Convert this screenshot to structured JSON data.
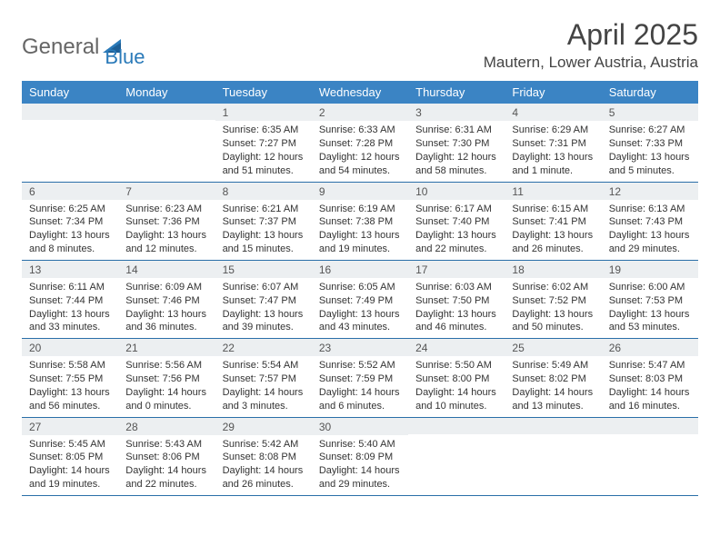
{
  "logo": {
    "word1": "General",
    "word2": "Blue"
  },
  "title": "April 2025",
  "location": "Mautern, Lower Austria, Austria",
  "daynames": [
    "Sunday",
    "Monday",
    "Tuesday",
    "Wednesday",
    "Thursday",
    "Friday",
    "Saturday"
  ],
  "colors": {
    "header_bg": "#3b84c4",
    "header_text": "#ffffff",
    "daynum_bg": "#eceff1",
    "rule": "#2a6fa8",
    "logo_gray": "#666666",
    "logo_blue": "#2a7ab9"
  },
  "weeks": [
    [
      {
        "n": "",
        "sr": "",
        "ss": "",
        "dl": ""
      },
      {
        "n": "",
        "sr": "",
        "ss": "",
        "dl": ""
      },
      {
        "n": "1",
        "sr": "Sunrise: 6:35 AM",
        "ss": "Sunset: 7:27 PM",
        "dl": "Daylight: 12 hours and 51 minutes."
      },
      {
        "n": "2",
        "sr": "Sunrise: 6:33 AM",
        "ss": "Sunset: 7:28 PM",
        "dl": "Daylight: 12 hours and 54 minutes."
      },
      {
        "n": "3",
        "sr": "Sunrise: 6:31 AM",
        "ss": "Sunset: 7:30 PM",
        "dl": "Daylight: 12 hours and 58 minutes."
      },
      {
        "n": "4",
        "sr": "Sunrise: 6:29 AM",
        "ss": "Sunset: 7:31 PM",
        "dl": "Daylight: 13 hours and 1 minute."
      },
      {
        "n": "5",
        "sr": "Sunrise: 6:27 AM",
        "ss": "Sunset: 7:33 PM",
        "dl": "Daylight: 13 hours and 5 minutes."
      }
    ],
    [
      {
        "n": "6",
        "sr": "Sunrise: 6:25 AM",
        "ss": "Sunset: 7:34 PM",
        "dl": "Daylight: 13 hours and 8 minutes."
      },
      {
        "n": "7",
        "sr": "Sunrise: 6:23 AM",
        "ss": "Sunset: 7:36 PM",
        "dl": "Daylight: 13 hours and 12 minutes."
      },
      {
        "n": "8",
        "sr": "Sunrise: 6:21 AM",
        "ss": "Sunset: 7:37 PM",
        "dl": "Daylight: 13 hours and 15 minutes."
      },
      {
        "n": "9",
        "sr": "Sunrise: 6:19 AM",
        "ss": "Sunset: 7:38 PM",
        "dl": "Daylight: 13 hours and 19 minutes."
      },
      {
        "n": "10",
        "sr": "Sunrise: 6:17 AM",
        "ss": "Sunset: 7:40 PM",
        "dl": "Daylight: 13 hours and 22 minutes."
      },
      {
        "n": "11",
        "sr": "Sunrise: 6:15 AM",
        "ss": "Sunset: 7:41 PM",
        "dl": "Daylight: 13 hours and 26 minutes."
      },
      {
        "n": "12",
        "sr": "Sunrise: 6:13 AM",
        "ss": "Sunset: 7:43 PM",
        "dl": "Daylight: 13 hours and 29 minutes."
      }
    ],
    [
      {
        "n": "13",
        "sr": "Sunrise: 6:11 AM",
        "ss": "Sunset: 7:44 PM",
        "dl": "Daylight: 13 hours and 33 minutes."
      },
      {
        "n": "14",
        "sr": "Sunrise: 6:09 AM",
        "ss": "Sunset: 7:46 PM",
        "dl": "Daylight: 13 hours and 36 minutes."
      },
      {
        "n": "15",
        "sr": "Sunrise: 6:07 AM",
        "ss": "Sunset: 7:47 PM",
        "dl": "Daylight: 13 hours and 39 minutes."
      },
      {
        "n": "16",
        "sr": "Sunrise: 6:05 AM",
        "ss": "Sunset: 7:49 PM",
        "dl": "Daylight: 13 hours and 43 minutes."
      },
      {
        "n": "17",
        "sr": "Sunrise: 6:03 AM",
        "ss": "Sunset: 7:50 PM",
        "dl": "Daylight: 13 hours and 46 minutes."
      },
      {
        "n": "18",
        "sr": "Sunrise: 6:02 AM",
        "ss": "Sunset: 7:52 PM",
        "dl": "Daylight: 13 hours and 50 minutes."
      },
      {
        "n": "19",
        "sr": "Sunrise: 6:00 AM",
        "ss": "Sunset: 7:53 PM",
        "dl": "Daylight: 13 hours and 53 minutes."
      }
    ],
    [
      {
        "n": "20",
        "sr": "Sunrise: 5:58 AM",
        "ss": "Sunset: 7:55 PM",
        "dl": "Daylight: 13 hours and 56 minutes."
      },
      {
        "n": "21",
        "sr": "Sunrise: 5:56 AM",
        "ss": "Sunset: 7:56 PM",
        "dl": "Daylight: 14 hours and 0 minutes."
      },
      {
        "n": "22",
        "sr": "Sunrise: 5:54 AM",
        "ss": "Sunset: 7:57 PM",
        "dl": "Daylight: 14 hours and 3 minutes."
      },
      {
        "n": "23",
        "sr": "Sunrise: 5:52 AM",
        "ss": "Sunset: 7:59 PM",
        "dl": "Daylight: 14 hours and 6 minutes."
      },
      {
        "n": "24",
        "sr": "Sunrise: 5:50 AM",
        "ss": "Sunset: 8:00 PM",
        "dl": "Daylight: 14 hours and 10 minutes."
      },
      {
        "n": "25",
        "sr": "Sunrise: 5:49 AM",
        "ss": "Sunset: 8:02 PM",
        "dl": "Daylight: 14 hours and 13 minutes."
      },
      {
        "n": "26",
        "sr": "Sunrise: 5:47 AM",
        "ss": "Sunset: 8:03 PM",
        "dl": "Daylight: 14 hours and 16 minutes."
      }
    ],
    [
      {
        "n": "27",
        "sr": "Sunrise: 5:45 AM",
        "ss": "Sunset: 8:05 PM",
        "dl": "Daylight: 14 hours and 19 minutes."
      },
      {
        "n": "28",
        "sr": "Sunrise: 5:43 AM",
        "ss": "Sunset: 8:06 PM",
        "dl": "Daylight: 14 hours and 22 minutes."
      },
      {
        "n": "29",
        "sr": "Sunrise: 5:42 AM",
        "ss": "Sunset: 8:08 PM",
        "dl": "Daylight: 14 hours and 26 minutes."
      },
      {
        "n": "30",
        "sr": "Sunrise: 5:40 AM",
        "ss": "Sunset: 8:09 PM",
        "dl": "Daylight: 14 hours and 29 minutes."
      },
      {
        "n": "",
        "sr": "",
        "ss": "",
        "dl": ""
      },
      {
        "n": "",
        "sr": "",
        "ss": "",
        "dl": ""
      },
      {
        "n": "",
        "sr": "",
        "ss": "",
        "dl": ""
      }
    ]
  ]
}
